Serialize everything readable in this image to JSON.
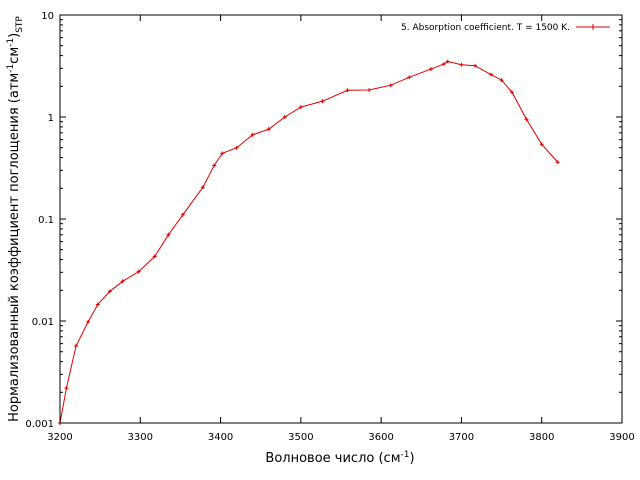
{
  "chart_data": {
    "type": "line",
    "xlabel": "Волновое число (см",
    "xlabel_sup": "-1",
    "xlabel_tail": ")",
    "ylabel_parts": {
      "main": "Нормализованный коэффициент поглощения (атм",
      "sup1": "-1",
      "mid": "см",
      "sup2": "-1",
      "close": ")",
      "sub": "STP"
    },
    "xlim": [
      3200,
      3900
    ],
    "ylim": [
      0.001,
      10
    ],
    "yscale": "log",
    "x_ticks": [
      "3200",
      "3300",
      "3400",
      "3500",
      "3600",
      "3700",
      "3800",
      "3900"
    ],
    "y_ticks": [
      "0.001",
      "0.01",
      "0.1",
      "1",
      "10"
    ],
    "x_tick_values": [
      3200,
      3300,
      3400,
      3500,
      3600,
      3700,
      3800,
      3900
    ],
    "y_tick_values": [
      0.001,
      0.01,
      0.1,
      1,
      10
    ],
    "legend_position": "top-right",
    "grid": false,
    "series": [
      {
        "name": "5. Absorption coefficient. T = 1500 K.",
        "color": "#e00000",
        "x": [
          3200,
          3208,
          3220,
          3235,
          3247,
          3262,
          3278,
          3298,
          3318,
          3335,
          3353,
          3378,
          3392,
          3402,
          3420,
          3440,
          3460,
          3480,
          3500,
          3527,
          3558,
          3585,
          3612,
          3635,
          3662,
          3678,
          3683,
          3700,
          3717,
          3737,
          3750,
          3763,
          3781,
          3800,
          3820
        ],
        "y": [
          0.001,
          0.0022,
          0.0057,
          0.0098,
          0.0145,
          0.0195,
          0.0245,
          0.0305,
          0.043,
          0.07,
          0.11,
          0.205,
          0.335,
          0.44,
          0.5,
          0.67,
          0.76,
          1.0,
          1.25,
          1.43,
          1.83,
          1.84,
          2.05,
          2.45,
          2.95,
          3.3,
          3.5,
          3.25,
          3.18,
          2.6,
          2.3,
          1.75,
          0.95,
          0.54,
          0.36
        ]
      }
    ]
  }
}
